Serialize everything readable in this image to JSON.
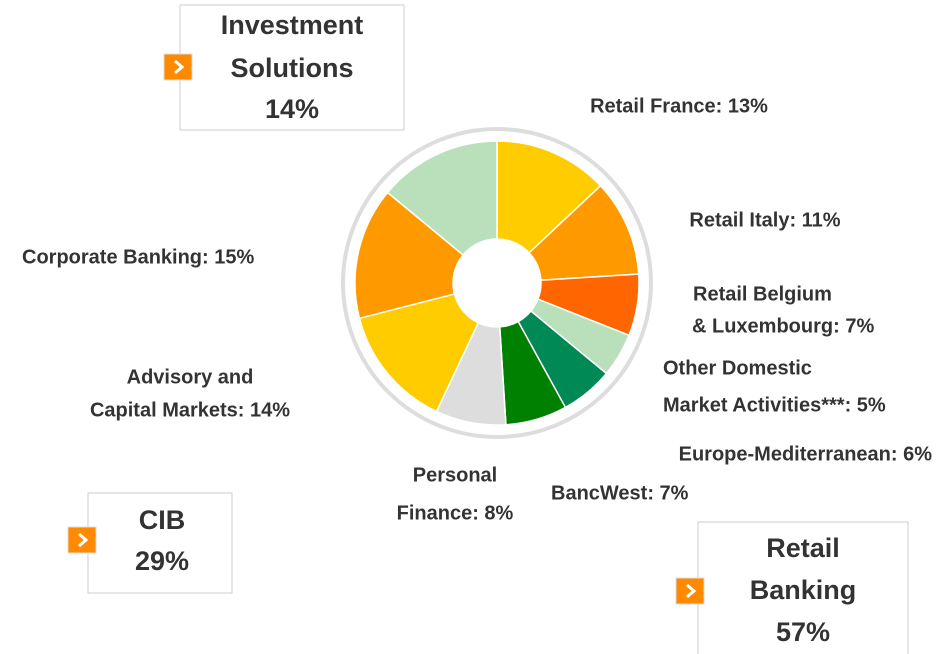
{
  "chart_data": {
    "type": "donut",
    "categories": [
      "Retail France",
      "Retail Italy",
      "Retail Belgium & Luxembourg",
      "Other Domestic Market Activities***",
      "Europe-Mediterranean",
      "BancWest",
      "Personal Finance",
      "Advisory and Capital Markets",
      "Corporate Banking",
      "Investment Solutions"
    ],
    "values": [
      13,
      11,
      7,
      5,
      6,
      7,
      8,
      14,
      15,
      14
    ],
    "colors": [
      "#ffcc00",
      "#ff9900",
      "#ff6600",
      "#b9e0bb",
      "#008855",
      "#008000",
      "#dddddd",
      "#ffcc00",
      "#ff9900",
      "#b9e0bb"
    ],
    "labels": [
      [
        "Retail France: 13%"
      ],
      [
        "Retail Italy: 11%"
      ],
      [
        "Retail Belgium",
        "& Luxembourg: 7%"
      ],
      [
        "Other Domestic",
        "Market Activities***: 5%"
      ],
      [
        "Europe-Mediterranean: 6%"
      ],
      [
        "BancWest: 7%"
      ],
      [
        "Personal",
        "Finance: 8%"
      ],
      [
        "Advisory and",
        "Capital Markets: 14%"
      ],
      [
        "Corporate Banking: 15%"
      ],
      []
    ],
    "groups": [
      {
        "lines": [
          "Investment",
          "Solutions",
          "14%"
        ]
      },
      {
        "lines": [
          "CIB",
          "29%"
        ]
      },
      {
        "lines": [
          "Retail",
          "Banking",
          "57%"
        ]
      }
    ]
  }
}
